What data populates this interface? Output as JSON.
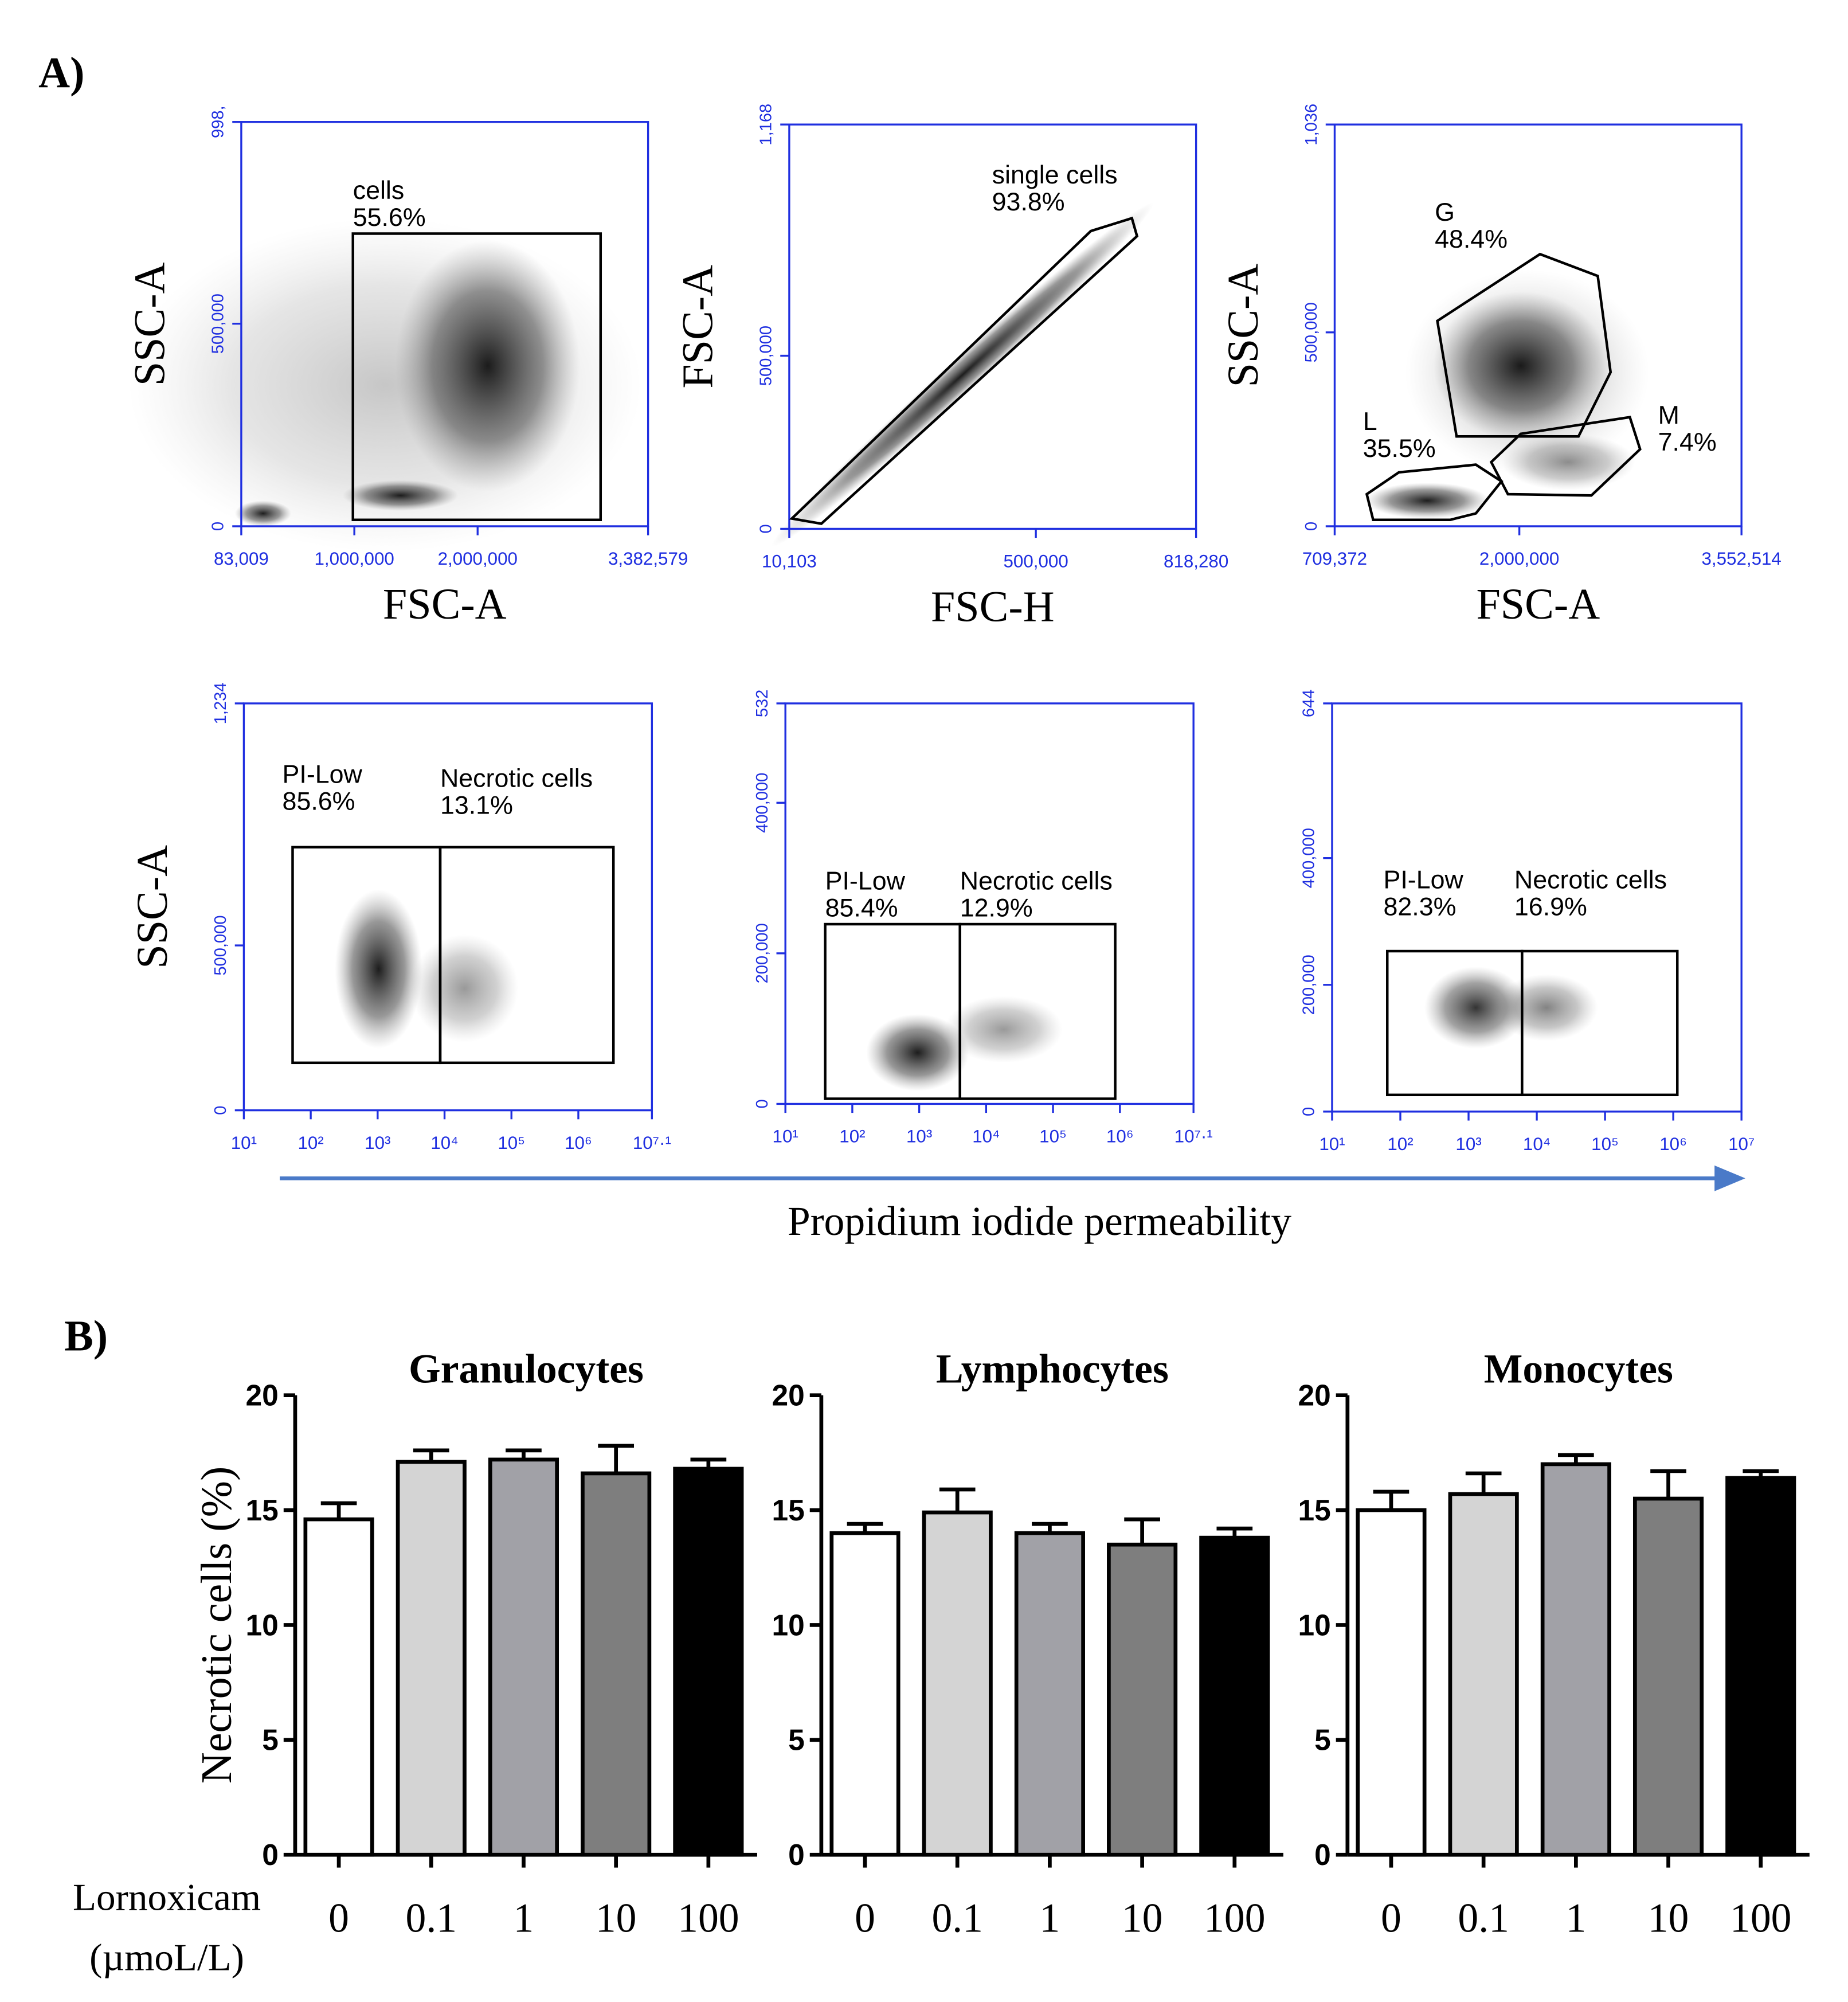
{
  "panel_labels": [
    "A)",
    "B)"
  ],
  "pi_axis_label": "Propidium iodide permeability",
  "bar_y_label": "Necrotic cells (%)",
  "bar_x_label": [
    "Lornoxicam",
    "(µmoL/L)"
  ],
  "chart_data": [
    {
      "type": "scatter",
      "xlabel": "FSC-A",
      "ylabel": "SSC-A",
      "xlim": [
        83009,
        3382579
      ],
      "ylim": [
        0,
        998000
      ],
      "xticks": [
        {
          "value": 83009,
          "label": "83,009"
        },
        {
          "value": 1000000,
          "label": "1,000,000"
        },
        {
          "value": 2000000,
          "label": "2,000,000"
        },
        {
          "value": 3382579,
          "label": "3,382,579"
        }
      ],
      "yticks": [
        0,
        {
          "value": 500000,
          "label": "500,000"
        },
        {
          "value": 998000,
          "label": "998,"
        }
      ],
      "gates": [
        {
          "name": "cells",
          "value": 55.6,
          "value_label": "55.6%"
        }
      ]
    },
    {
      "type": "scatter",
      "xlabel": "FSC-H",
      "ylabel": "FSC-A",
      "xlim": [
        10103,
        818280
      ],
      "ylim": [
        0,
        1168000
      ],
      "xticks": [
        {
          "value": 10103,
          "label": "10,103"
        },
        {
          "value": 500000,
          "label": "500,000"
        },
        {
          "value": 818280,
          "label": "818,280"
        }
      ],
      "yticks": [
        0,
        {
          "value": 500000,
          "label": "500,000"
        },
        {
          "value": 1168000,
          "label": "1,168"
        }
      ],
      "gates": [
        {
          "name": "single cells",
          "value": 93.8,
          "value_label": "93.8%"
        }
      ]
    },
    {
      "type": "scatter",
      "xlabel": "FSC-A",
      "ylabel": "SSC-A",
      "xlim": [
        709372,
        3552514
      ],
      "ylim": [
        0,
        1036000
      ],
      "xticks": [
        {
          "value": 709372,
          "label": "709,372"
        },
        {
          "value": 2000000,
          "label": "2,000,000"
        },
        {
          "value": 3552514,
          "label": "3,552,514"
        }
      ],
      "yticks": [
        0,
        {
          "value": 500000,
          "label": "500,000"
        },
        {
          "value": 1036000,
          "label": "1,036"
        }
      ],
      "gates": [
        {
          "name": "G",
          "value": 48.4,
          "value_label": "48.4%"
        },
        {
          "name": "L",
          "value": 35.5,
          "value_label": "35.5%"
        },
        {
          "name": "M",
          "value": 7.4,
          "value_label": "7.4%"
        }
      ]
    },
    {
      "type": "scatter",
      "ylabel": "SSC-A",
      "xscale": "log",
      "xlim": [
        10,
        12589254
      ],
      "ylim": [
        0,
        1234000
      ],
      "xticks": [
        {
          "value": 10,
          "label": "10¹"
        },
        {
          "value": 100,
          "label": "10²"
        },
        {
          "value": 1000,
          "label": "10³"
        },
        {
          "value": 10000,
          "label": "10⁴"
        },
        {
          "value": 100000,
          "label": "10⁵"
        },
        {
          "value": 1000000,
          "label": "10⁶"
        },
        {
          "value": 12589254,
          "label": "10⁷·¹"
        }
      ],
      "yticks": [
        0,
        {
          "value": 500000,
          "label": "500,000"
        },
        {
          "value": 1234000,
          "label": "1,234"
        }
      ],
      "gates": [
        {
          "name": "PI-Low",
          "value": 85.6,
          "value_label": "85.6%"
        },
        {
          "name": "Necrotic cells",
          "value": 13.1,
          "value_label": "13.1%"
        }
      ]
    },
    {
      "type": "scatter",
      "xscale": "log",
      "xlim": [
        10,
        12589254
      ],
      "ylim": [
        0,
        532000
      ],
      "xticks": [
        {
          "value": 10,
          "label": "10¹"
        },
        {
          "value": 100,
          "label": "10²"
        },
        {
          "value": 1000,
          "label": "10³"
        },
        {
          "value": 10000,
          "label": "10⁴"
        },
        {
          "value": 100000,
          "label": "10⁵"
        },
        {
          "value": 1000000,
          "label": "10⁶"
        },
        {
          "value": 12589254,
          "label": "10⁷·¹"
        }
      ],
      "yticks": [
        0,
        {
          "value": 200000,
          "label": "200,000"
        },
        {
          "value": 400000,
          "label": "400,000"
        },
        {
          "value": 532000,
          "label": "532"
        }
      ],
      "gates": [
        {
          "name": "PI-Low",
          "value": 85.4,
          "value_label": "85.4%"
        },
        {
          "name": "Necrotic cells",
          "value": 12.9,
          "value_label": "12.9%"
        }
      ]
    },
    {
      "type": "scatter",
      "xscale": "log",
      "xlim": [
        10,
        10000000
      ],
      "ylim": [
        0,
        644000
      ],
      "xticks": [
        {
          "value": 10,
          "label": "10¹"
        },
        {
          "value": 100,
          "label": "10²"
        },
        {
          "value": 1000,
          "label": "10³"
        },
        {
          "value": 10000,
          "label": "10⁴"
        },
        {
          "value": 100000,
          "label": "10⁵"
        },
        {
          "value": 1000000,
          "label": "10⁶"
        },
        {
          "value": 10000000,
          "label": "10⁷"
        }
      ],
      "yticks": [
        0,
        {
          "value": 200000,
          "label": "200,000"
        },
        {
          "value": 400000,
          "label": "400,000"
        },
        {
          "value": 644000,
          "label": "644"
        }
      ],
      "gates": [
        {
          "name": "PI-Low",
          "value": 82.3,
          "value_label": "82.3%"
        },
        {
          "name": "Necrotic cells",
          "value": 16.9,
          "value_label": "16.9%"
        }
      ]
    },
    {
      "type": "bar",
      "title": "Granulocytes",
      "categories": [
        "0",
        "0.1",
        "1",
        "10",
        "100"
      ],
      "values": [
        14.6,
        17.1,
        17.2,
        16.6,
        16.8
      ],
      "errors": [
        0.7,
        0.5,
        0.4,
        1.2,
        0.4
      ],
      "colors": [
        "#ffffff",
        "#d4d4d4",
        "#a1a1a7",
        "#7e7e7e",
        "#000000"
      ],
      "ylim": [
        0,
        20
      ],
      "yticks": [
        0,
        5,
        10,
        15,
        20
      ]
    },
    {
      "type": "bar",
      "title": "Lymphocytes",
      "categories": [
        "0",
        "0.1",
        "1",
        "10",
        "100"
      ],
      "values": [
        14.0,
        14.9,
        14.0,
        13.5,
        13.8
      ],
      "errors": [
        0.4,
        1.0,
        0.4,
        1.1,
        0.4
      ],
      "colors": [
        "#ffffff",
        "#d4d4d4",
        "#a1a1a7",
        "#7e7e7e",
        "#000000"
      ],
      "ylim": [
        0,
        20
      ],
      "yticks": [
        0,
        5,
        10,
        15,
        20
      ]
    },
    {
      "type": "bar",
      "title": "Monocytes",
      "categories": [
        "0",
        "0.1",
        "1",
        "10",
        "100"
      ],
      "values": [
        15.0,
        15.7,
        17.0,
        15.5,
        16.4
      ],
      "errors": [
        0.8,
        0.9,
        0.4,
        1.2,
        0.3
      ],
      "colors": [
        "#ffffff",
        "#d4d4d4",
        "#a1a1a7",
        "#7e7e7e",
        "#000000"
      ],
      "ylim": [
        0,
        20
      ],
      "yticks": [
        0,
        5,
        10,
        15,
        20
      ]
    }
  ]
}
